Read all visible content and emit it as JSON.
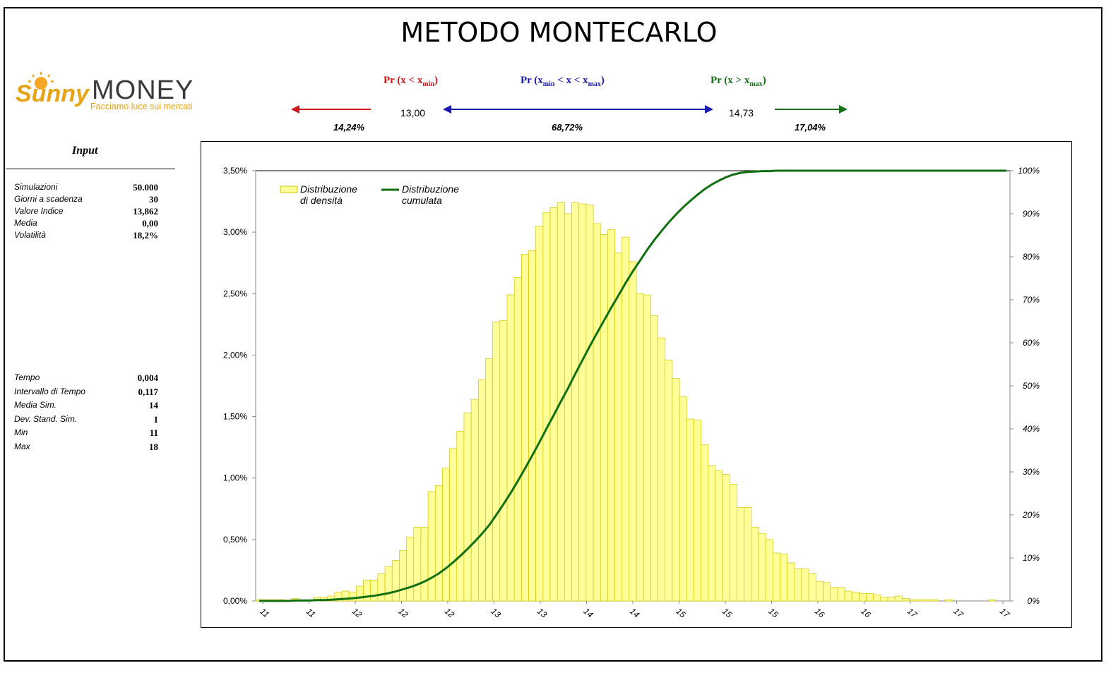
{
  "title": "METODO MONTECARLO",
  "logo": {
    "brand": "MONEY",
    "script": "Sunny",
    "tagline": "Facciamo luce sui mercati"
  },
  "probabilities": {
    "below": {
      "label_pre": "Pr (x < x",
      "label_sub": "min",
      "label_post": ")",
      "value": "14,24%",
      "color": "#d01818"
    },
    "between": {
      "label_pre": "Pr (x",
      "label_sub1": "min",
      "label_mid": " < x < x",
      "label_sub2": "max",
      "label_post": ")",
      "value": "68,72%",
      "color": "#1a1ab0"
    },
    "above": {
      "label_pre": "Pr (x > x",
      "label_sub": "max",
      "label_post": ")",
      "value": "17,04%",
      "color": "#187018"
    },
    "x_min": "13,00",
    "x_max": "14,73"
  },
  "input": {
    "title": "Input",
    "params": [
      {
        "key": "Simulazioni",
        "value": "50.000"
      },
      {
        "key": "Giorni a scadenza",
        "value": "30"
      },
      {
        "key": "Valore Indice",
        "value": "13,862"
      },
      {
        "key": "Media",
        "value": "0,00"
      },
      {
        "key": "Volatilità",
        "value": "18,2%"
      }
    ],
    "results": [
      {
        "key": "Tempo",
        "value": "0,004"
      },
      {
        "key": "Intervallo di Tempo",
        "value": "0,117"
      },
      {
        "key": "Media Sim.",
        "value": "14"
      },
      {
        "key": "Dev. Stand. Sim.",
        "value": "1"
      },
      {
        "key": "Min",
        "value": "11"
      },
      {
        "key": "Max",
        "value": "18"
      }
    ]
  },
  "chart_data": {
    "type": "bar",
    "bar_color": "#ffff99",
    "bar_border": "#d4c400",
    "line_color": "#107010",
    "legend": [
      {
        "name": "Distribuzione di densità",
        "line1": "Distribuzione",
        "line2": "di densità"
      },
      {
        "name": "Distribuzione cumulata",
        "line1": "Distribuzione",
        "line2": "cumulata"
      }
    ],
    "legend_position": "top-left",
    "y_left": {
      "min": 0,
      "max": 3.5,
      "ticks": [
        "0,00%",
        "0,50%",
        "1,00%",
        "1,50%",
        "2,00%",
        "2,50%",
        "3,00%",
        "3,50%"
      ]
    },
    "y_right": {
      "min": 0,
      "max": 100,
      "ticks": [
        "0%",
        "10%",
        "20%",
        "30%",
        "40%",
        "50%",
        "60%",
        "70%",
        "80%",
        "90%",
        "100%"
      ]
    },
    "x_tick_labels": [
      "11",
      "11",
      "12",
      "12",
      "12",
      "13",
      "13",
      "14",
      "14",
      "15",
      "15",
      "15",
      "16",
      "16",
      "17",
      "17",
      "17"
    ],
    "density": [
      0.01,
      0.01,
      0.01,
      0.01,
      0.0,
      0.02,
      0.01,
      0.0,
      0.03,
      0.03,
      0.04,
      0.07,
      0.08,
      0.07,
      0.12,
      0.17,
      0.17,
      0.22,
      0.28,
      0.33,
      0.41,
      0.52,
      0.6,
      0.6,
      0.89,
      0.94,
      1.08,
      1.24,
      1.38,
      1.53,
      1.64,
      1.8,
      1.97,
      2.27,
      2.28,
      2.49,
      2.63,
      2.82,
      2.85,
      3.05,
      3.16,
      3.2,
      3.24,
      3.15,
      3.24,
      3.23,
      3.22,
      3.07,
      2.98,
      3.02,
      2.83,
      2.96,
      2.76,
      2.5,
      2.49,
      2.32,
      2.14,
      1.96,
      1.81,
      1.66,
      1.48,
      1.47,
      1.27,
      1.1,
      1.06,
      1.03,
      0.95,
      0.76,
      0.76,
      0.6,
      0.55,
      0.5,
      0.39,
      0.38,
      0.31,
      0.26,
      0.26,
      0.22,
      0.16,
      0.15,
      0.11,
      0.11,
      0.08,
      0.07,
      0.06,
      0.06,
      0.05,
      0.03,
      0.03,
      0.04,
      0.02,
      0.01,
      0.01,
      0.01,
      0.01,
      0.0,
      0.01,
      0.0,
      0.0,
      0.0,
      0.0,
      0.0,
      0.01,
      0.0,
      0.0
    ],
    "cumulative": [
      0.0,
      0.0,
      0.0,
      0.0,
      0.0,
      0.1,
      0.1,
      0.1,
      0.2,
      0.2,
      0.3,
      0.4,
      0.5,
      0.6,
      0.8,
      1.0,
      1.2,
      1.5,
      1.8,
      2.2,
      2.7,
      3.2,
      3.8,
      4.5,
      5.4,
      6.4,
      7.6,
      9.0,
      10.5,
      12.1,
      13.8,
      15.6,
      17.6,
      20.0,
      22.5,
      25.1,
      27.9,
      30.8,
      33.8,
      36.9,
      40.1,
      43.2,
      46.4,
      49.5,
      52.8,
      56.0,
      59.2,
      62.2,
      65.2,
      68.2,
      71.0,
      73.9,
      76.6,
      79.1,
      81.6,
      83.9,
      86.0,
      88.0,
      89.8,
      91.5,
      93.0,
      94.4,
      95.7,
      96.8,
      97.7,
      98.5,
      99.1,
      99.5,
      99.7,
      99.8,
      99.9,
      99.9,
      100.0,
      100.0,
      100.0,
      100.0,
      100.0,
      100.0,
      100.0,
      100.0,
      100.0,
      100.0,
      100.0,
      100.0,
      100.0,
      100.0,
      100.0,
      100.0,
      100.0,
      100.0,
      100.0,
      100.0,
      100.0,
      100.0,
      100.0,
      100.0,
      100.0,
      100.0,
      100.0,
      100.0,
      100.0,
      100.0,
      100.0,
      100.0,
      100.0
    ]
  }
}
